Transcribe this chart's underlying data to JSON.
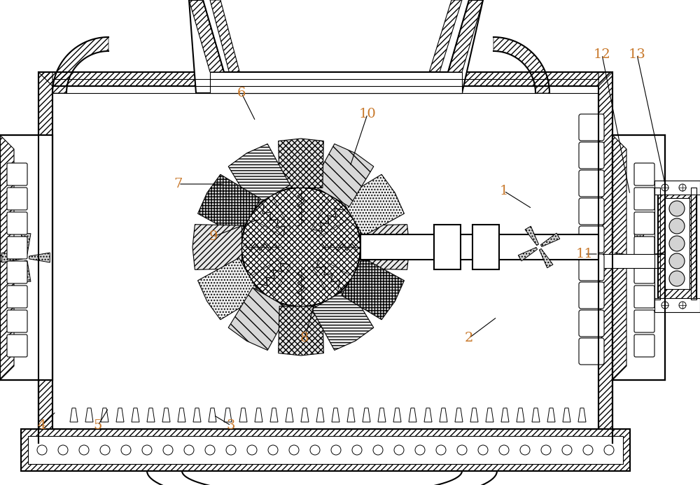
{
  "title": "",
  "bg_color": "#ffffff",
  "line_color": "#000000",
  "label_color": "#c8782a",
  "fig_width": 10.0,
  "fig_height": 6.93,
  "label_positions": {
    "1": [
      720,
      420,
      760,
      395
    ],
    "2": [
      670,
      210,
      710,
      240
    ],
    "3": [
      330,
      85,
      305,
      100
    ],
    "4": [
      60,
      85,
      80,
      105
    ],
    "5": [
      140,
      85,
      155,
      110
    ],
    "6": [
      345,
      560,
      365,
      520
    ],
    "7": [
      255,
      430,
      320,
      430
    ],
    "8": [
      435,
      210,
      450,
      260
    ],
    "9": [
      305,
      355,
      370,
      380
    ],
    "10": [
      525,
      530,
      500,
      455
    ],
    "11": [
      835,
      330,
      855,
      330
    ],
    "12": [
      860,
      615,
      900,
      415
    ],
    "13": [
      910,
      615,
      950,
      430
    ]
  }
}
